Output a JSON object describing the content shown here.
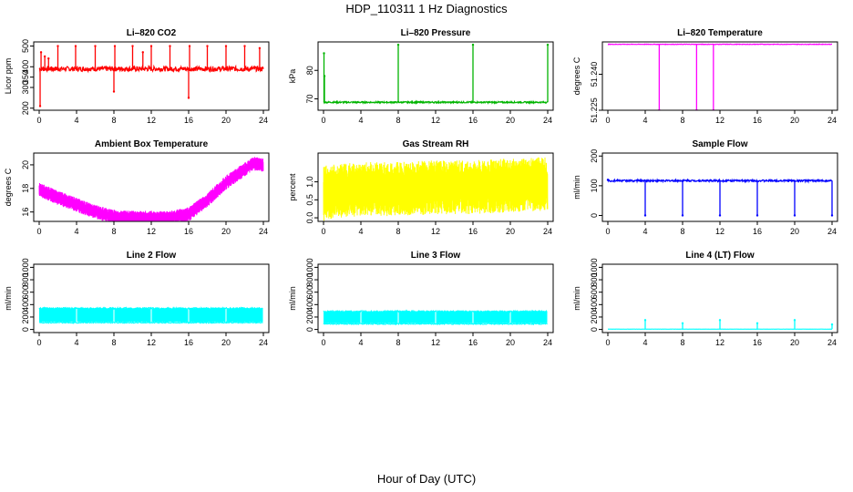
{
  "page": {
    "title": "HDP_110311  1 Hz Diagnostics",
    "xlabel": "Hour of Day (UTC)"
  },
  "chart_data": [
    {
      "id": "co2",
      "type": "line",
      "title": "Li–820 CO2",
      "ylabel": "Licor ppm",
      "color": "#ff0000",
      "xlim": [
        0,
        24
      ],
      "xticks": [
        0,
        4,
        8,
        12,
        16,
        20,
        24
      ],
      "ylim": [
        190,
        520
      ],
      "yticks": [
        200,
        300,
        350,
        400,
        500
      ],
      "baseline": 390,
      "noise": 12,
      "spikes": [
        [
          0.1,
          210
        ],
        [
          0.2,
          470
        ],
        [
          0.6,
          450
        ],
        [
          1.0,
          440
        ],
        [
          2.0,
          500
        ],
        [
          3.9,
          500
        ],
        [
          6.0,
          500
        ],
        [
          8.0,
          280
        ],
        [
          8.1,
          500
        ],
        [
          10.0,
          500
        ],
        [
          11.1,
          470
        ],
        [
          12.0,
          500
        ],
        [
          14.0,
          500
        ],
        [
          16.0,
          250
        ],
        [
          16.1,
          500
        ],
        [
          18.0,
          500
        ],
        [
          20.0,
          500
        ],
        [
          22.0,
          500
        ],
        [
          23.6,
          490
        ]
      ]
    },
    {
      "id": "pressure",
      "type": "line",
      "title": "Li–820 Pressure",
      "ylabel": "kPa",
      "color": "#00b400",
      "xlim": [
        0,
        24
      ],
      "xticks": [
        0,
        4,
        8,
        12,
        16,
        20,
        24
      ],
      "ylim": [
        66,
        90
      ],
      "yticks": [
        70,
        80
      ],
      "baseline": 68.8,
      "noise": 0.25,
      "spikes": [
        [
          0.05,
          86
        ],
        [
          0.1,
          78
        ],
        [
          8.0,
          89
        ],
        [
          16.0,
          89
        ],
        [
          24.0,
          89
        ]
      ]
    },
    {
      "id": "temperature",
      "type": "line",
      "title": "Li–820 Temperature",
      "ylabel": "degrees C",
      "color": "#ff00ff",
      "xlim": [
        0,
        24
      ],
      "xticks": [
        0,
        4,
        8,
        12,
        16,
        20,
        24
      ],
      "ylim": [
        51.225,
        51.2535
      ],
      "yticks": [
        51.225,
        51.24
      ],
      "baseline": 51.2525,
      "noise": 0.0001,
      "spikes": [
        [
          5.5,
          51.225
        ],
        [
          9.5,
          51.225
        ],
        [
          11.3,
          51.225
        ]
      ]
    },
    {
      "id": "boxtemp",
      "type": "line",
      "title": "Ambient Box Temperature",
      "ylabel": "degrees C",
      "color": "#ff00ff",
      "xlim": [
        0,
        24
      ],
      "xticks": [
        0,
        4,
        8,
        12,
        16,
        20,
        24
      ],
      "ylim": [
        15.2,
        21
      ],
      "yticks": [
        16,
        18,
        20
      ],
      "band": 0.6,
      "curve": [
        [
          0,
          17.9
        ],
        [
          2,
          17.2
        ],
        [
          4,
          16.6
        ],
        [
          6,
          16.0
        ],
        [
          8,
          15.6
        ],
        [
          10,
          15.5
        ],
        [
          12,
          15.5
        ],
        [
          14,
          15.5
        ],
        [
          16,
          15.8
        ],
        [
          18,
          17.0
        ],
        [
          20,
          18.5
        ],
        [
          22,
          19.6
        ],
        [
          23,
          20.1
        ],
        [
          24,
          20.0
        ]
      ]
    },
    {
      "id": "rh",
      "type": "line",
      "title": "Gas Stream RH",
      "ylabel": "percent",
      "color": "#ffff00",
      "xlim": [
        0,
        24
      ],
      "xticks": [
        0,
        4,
        8,
        12,
        16,
        20,
        24
      ],
      "ylim": [
        -0.1,
        1.8
      ],
      "yticks": [
        0.0,
        0.5,
        1.0
      ],
      "band": 0.75,
      "curve": [
        [
          0,
          0.7
        ],
        [
          4,
          0.8
        ],
        [
          8,
          0.8
        ],
        [
          12,
          0.85
        ],
        [
          16,
          0.85
        ],
        [
          20,
          0.9
        ],
        [
          24,
          0.95
        ]
      ]
    },
    {
      "id": "sampleflow",
      "type": "line",
      "title": "Sample Flow",
      "ylabel": "ml/min",
      "color": "#0000ff",
      "xlim": [
        0,
        24
      ],
      "xticks": [
        0,
        4,
        8,
        12,
        16,
        20,
        24
      ],
      "ylim": [
        -20,
        210
      ],
      "yticks": [
        0,
        100,
        200
      ],
      "baseline": 117,
      "noise": 3,
      "spikes": [
        [
          0.0,
          120
        ],
        [
          4.0,
          0
        ],
        [
          8.0,
          0
        ],
        [
          12.0,
          0
        ],
        [
          16.0,
          0
        ],
        [
          20.0,
          0
        ],
        [
          24.0,
          0
        ]
      ]
    },
    {
      "id": "line2",
      "type": "line",
      "title": "Line 2 Flow",
      "ylabel": "ml/min",
      "color": "#00ffff",
      "xlim": [
        0,
        24
      ],
      "xticks": [
        0,
        4,
        8,
        12,
        16,
        20,
        24
      ],
      "ylim": [
        -50,
        1050
      ],
      "yticks": [
        0,
        200,
        400,
        600,
        800,
        1000
      ],
      "bandlo": 120,
      "bandhi": 340,
      "gaps": [
        4,
        8,
        12,
        16,
        20,
        24
      ]
    },
    {
      "id": "line3",
      "type": "line",
      "title": "Line 3 Flow",
      "ylabel": "ml/min",
      "color": "#00ffff",
      "xlim": [
        0,
        24
      ],
      "xticks": [
        0,
        4,
        8,
        12,
        16,
        20,
        24
      ],
      "ylim": [
        -50,
        1050
      ],
      "yticks": [
        0,
        200,
        400,
        600,
        800,
        1000
      ],
      "bandlo": 100,
      "bandhi": 290,
      "gaps": [
        4,
        8,
        12,
        16,
        20,
        24
      ]
    },
    {
      "id": "line4",
      "type": "line",
      "title": "Line 4 (LT) Flow",
      "ylabel": "ml/min",
      "color": "#00ffff",
      "xlim": [
        0,
        24
      ],
      "xticks": [
        0,
        4,
        8,
        12,
        16,
        20,
        24
      ],
      "ylim": [
        -50,
        1050
      ],
      "yticks": [
        0,
        200,
        400,
        600,
        800,
        1000
      ],
      "baseline": 5,
      "noise": 1,
      "spikes": [
        [
          4.0,
          150
        ],
        [
          8.0,
          100
        ],
        [
          12.0,
          150
        ],
        [
          16.0,
          100
        ],
        [
          20.0,
          150
        ],
        [
          24.0,
          80
        ]
      ]
    }
  ]
}
